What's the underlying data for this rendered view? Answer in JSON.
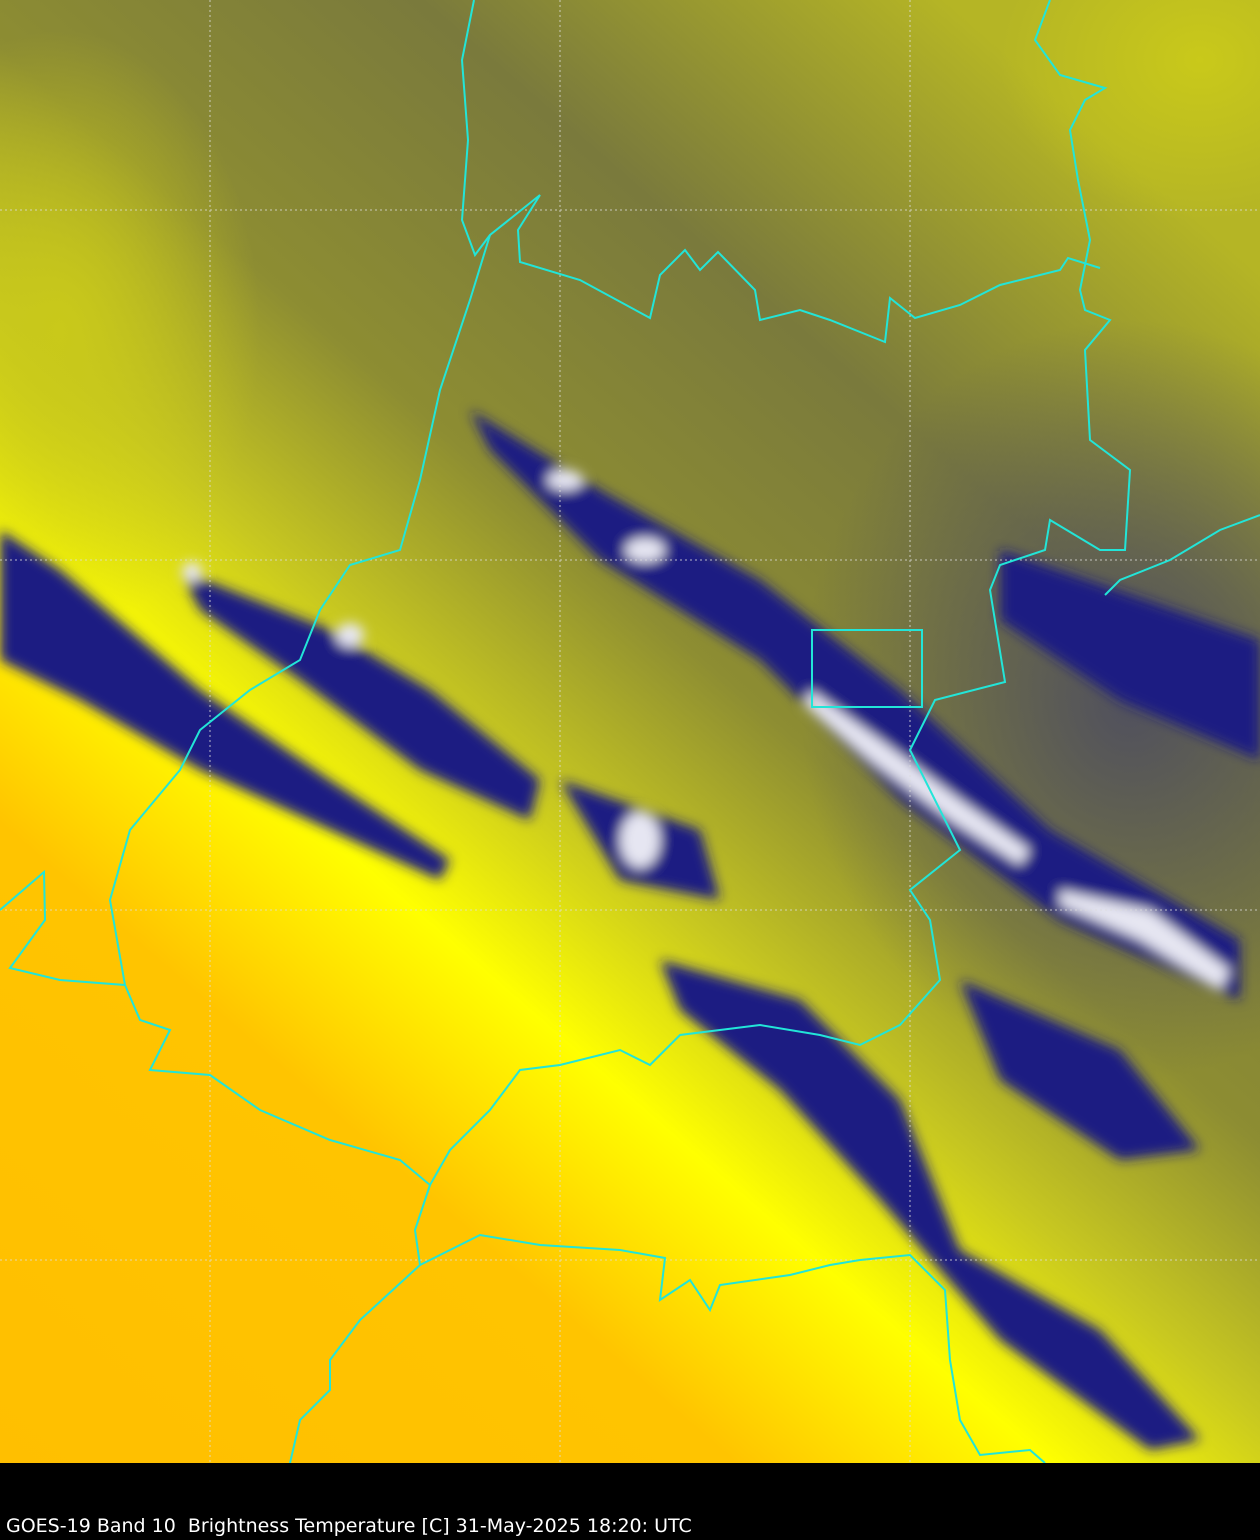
{
  "caption": "GOES-19 Band 10  Brightness Temperature [C] 31-May-2025 18:20: UTC",
  "map": {
    "satellite": "GOES-19",
    "band": "Band 10",
    "product": "Brightness Temperature [C]",
    "border_color": "#22e5d8",
    "grid_color": "#dddddd",
    "palette": {
      "warm": "#ffbf00",
      "mid": "#ffff00",
      "olive": "#8a8a30",
      "cool_gray": "#555560",
      "cold_cloud": "#1a1a80",
      "coldest": "#ffffff"
    }
  }
}
